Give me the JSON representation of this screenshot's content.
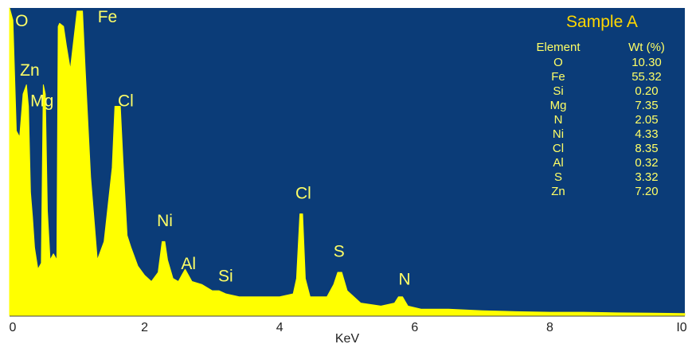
{
  "chart_data": {
    "type": "area",
    "title": "Sample A",
    "xlabel": "KeV",
    "ylabel": "",
    "xlim": [
      0,
      10
    ],
    "ylim": [
      0,
      100
    ],
    "x_ticks": [
      {
        "value": 0,
        "label": "0"
      },
      {
        "value": 2,
        "label": "2"
      },
      {
        "value": 4,
        "label": "4"
      },
      {
        "value": 6,
        "label": "6"
      },
      {
        "value": 8,
        "label": "8"
      },
      {
        "value": 10,
        "label": "I0"
      }
    ],
    "grid": false,
    "colors": {
      "background": "#0b3c78",
      "spectrum": "#ffff00",
      "text": "#ffff66",
      "title": "#ffd700",
      "axis": "#444444"
    },
    "series": [
      {
        "x": [
          0.0,
          0.05,
          0.1,
          0.15,
          0.2,
          0.25,
          0.28,
          0.31,
          0.34,
          0.37,
          0.42,
          0.47,
          0.5,
          0.53,
          0.56,
          0.6,
          0.65,
          0.7,
          0.72,
          0.74,
          0.8,
          0.84,
          0.9,
          1.0,
          1.04,
          1.08,
          1.12,
          1.2,
          1.3,
          1.4,
          1.48,
          1.52,
          1.56,
          1.6,
          1.64,
          1.68,
          1.74,
          1.8,
          1.9,
          2.0,
          2.1,
          2.2,
          2.26,
          2.3,
          2.34,
          2.42,
          2.5,
          2.55,
          2.6,
          2.7,
          2.85,
          3.0,
          3.1,
          3.2,
          3.4,
          3.6,
          3.8,
          4.0,
          4.2,
          4.25,
          4.3,
          4.34,
          4.38,
          4.45,
          4.6,
          4.7,
          4.8,
          4.86,
          4.92,
          5.0,
          5.2,
          5.5,
          5.7,
          5.76,
          5.82,
          5.9,
          6.1,
          6.5,
          7.0,
          7.5,
          8.0,
          8.5,
          9.0,
          9.5,
          10.0
        ],
        "y": [
          100,
          96,
          60,
          58,
          72,
          75,
          68,
          40,
          32,
          22,
          15,
          17,
          75,
          72,
          34,
          18,
          20,
          18,
          94,
          95,
          94,
          88,
          80,
          99,
          99,
          99,
          80,
          45,
          18,
          24,
          40,
          48,
          68,
          68,
          68,
          50,
          26,
          22,
          16,
          13,
          11,
          14,
          24,
          24,
          18,
          12,
          11,
          13,
          15,
          11,
          10,
          8,
          8,
          7,
          6,
          6,
          6,
          6,
          7,
          12,
          33,
          33,
          12,
          6,
          6,
          6,
          10,
          14,
          14,
          8,
          4,
          3,
          4,
          6,
          6,
          3,
          2,
          2,
          1.5,
          1.2,
          1,
          1,
          0.8,
          0.7,
          0.6
        ]
      }
    ],
    "peak_labels": [
      {
        "text": "O",
        "x": 0.18,
        "y": 94
      },
      {
        "text": "Fe",
        "x": 1.45,
        "y": 104
      },
      {
        "text": "Zn",
        "x": 0.3,
        "y": 78
      },
      {
        "text": "Mg",
        "x": 0.48,
        "y": 68
      },
      {
        "text": "Cl",
        "x": 1.72,
        "y": 68
      },
      {
        "text": "Ni",
        "x": 2.3,
        "y": 29
      },
      {
        "text": "Al",
        "x": 2.65,
        "y": 15
      },
      {
        "text": "Si",
        "x": 3.2,
        "y": 11
      },
      {
        "text": "Cl",
        "x": 4.35,
        "y": 38
      },
      {
        "text": "S",
        "x": 4.88,
        "y": 19
      },
      {
        "text": "N",
        "x": 5.85,
        "y": 10
      }
    ],
    "table": {
      "headers": [
        "Element",
        "Wt (%)"
      ],
      "rows": [
        [
          "O",
          "10.30"
        ],
        [
          "Fe",
          "55.32"
        ],
        [
          "Si",
          "0.20"
        ],
        [
          "Mg",
          "7.35"
        ],
        [
          "N",
          "2.05"
        ],
        [
          "Ni",
          "4.33"
        ],
        [
          "Cl",
          "8.35"
        ],
        [
          "Al",
          "0.32"
        ],
        [
          "S",
          "3.32"
        ],
        [
          "Zn",
          "7.20"
        ]
      ]
    }
  }
}
